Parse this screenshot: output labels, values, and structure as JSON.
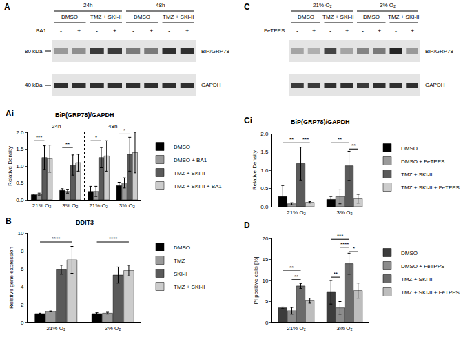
{
  "chart_data": [
    {
      "panel": "Ai",
      "type": "bar",
      "title": "BiP(GRP78)/GAPDH",
      "y_label": "Relative Density",
      "headers": [
        "24h",
        "48h"
      ],
      "categories": [
        "21% O₂",
        "3% O₂",
        "21% O₂",
        "3% O₂"
      ],
      "series": [
        {
          "name": "DMSO",
          "color": "#000000",
          "values": [
            0.15,
            0.28,
            0.25,
            0.42
          ],
          "errors": [
            0.02,
            0.05,
            0.15,
            0.1
          ]
        },
        {
          "name": "DMSO + BA1",
          "color": "#9a9a9a",
          "values": [
            0.17,
            0.25,
            0.25,
            0.5
          ],
          "errors": [
            0.03,
            0.05,
            0.15,
            0.15
          ]
        },
        {
          "name": "TMZ + SKI-II",
          "color": "#5a5a5a",
          "values": [
            1.25,
            1.03,
            1.25,
            1.35
          ],
          "errors": [
            0.35,
            0.3,
            0.3,
            0.5
          ]
        },
        {
          "name": "TMZ + SKI-II + BA1",
          "color": "#cccccc",
          "values": [
            1.22,
            1.1,
            1.3,
            1.4
          ],
          "errors": [
            0.4,
            0.25,
            0.45,
            0.6
          ]
        }
      ],
      "ylim": [
        0,
        2
      ],
      "yticks": [
        {
          "value": 0,
          "label": "0.0"
        },
        0.5,
        {
          "value": 1,
          "label": "1.0"
        },
        1.5,
        {
          "value": 2,
          "label": "2.0"
        }
      ],
      "grid": false,
      "legend": "right",
      "annotations": [
        {
          "text": "***",
          "group": 0,
          "from": 0,
          "to": 2,
          "y": 1.75
        },
        {
          "text": "**",
          "group": 1,
          "from": 0,
          "to": 2,
          "y": 1.55
        },
        {
          "text": "*",
          "group": 2,
          "from": 0,
          "to": 2,
          "y": 1.75
        },
        {
          "text": "*",
          "group": 3,
          "from": 0,
          "to": 2,
          "y": 1.95
        }
      ]
    },
    {
      "panel": "B",
      "type": "bar",
      "title": "DDIT3",
      "y_label": "Relative gene expression",
      "categories": [
        "21% O₂",
        "3% O₂"
      ],
      "series": [
        {
          "name": "DMSO",
          "color": "#000000",
          "values": [
            1.0,
            1.0
          ],
          "errors": [
            0.05,
            0.1
          ]
        },
        {
          "name": "TMZ",
          "color": "#9a9a9a",
          "values": [
            1.25,
            1.05
          ],
          "errors": [
            0.05,
            0.1
          ]
        },
        {
          "name": "SKI-II",
          "color": "#5a5a5a",
          "values": [
            5.9,
            5.3
          ],
          "errors": [
            0.5,
            0.9
          ]
        },
        {
          "name": "TMZ + SKI-II",
          "color": "#cccccc",
          "values": [
            7.0,
            5.8
          ],
          "errors": [
            1.5,
            0.6
          ]
        }
      ],
      "ylim": [
        0,
        10
      ],
      "yticks": [
        0,
        2,
        4,
        6,
        8,
        10
      ],
      "grid": false,
      "legend": "right",
      "annotations": [
        {
          "text": "****",
          "group": 0,
          "from": 0,
          "to": 3,
          "y": 9.0
        },
        {
          "text": "****",
          "group": 1,
          "from": 0,
          "to": 3,
          "y": 9.0
        }
      ]
    },
    {
      "panel": "Ci",
      "type": "bar",
      "title": "BiP(GRP78)/GAPDH",
      "y_label": "Relative Density",
      "categories": [
        "21% O₂",
        "3% O₂"
      ],
      "series": [
        {
          "name": "DMSO",
          "color": "#000000",
          "values": [
            0.28,
            0.2
          ],
          "errors": [
            0.3,
            0.08
          ]
        },
        {
          "name": "DMSO + FeTPPS",
          "color": "#9a9a9a",
          "values": [
            0.08,
            0.28
          ],
          "errors": [
            0.03,
            0.2
          ]
        },
        {
          "name": "TMZ + SKI-II",
          "color": "#5a5a5a",
          "values": [
            1.18,
            1.12
          ],
          "errors": [
            0.45,
            0.4
          ]
        },
        {
          "name": "TMZ + SKI-II + FeTPPS",
          "color": "#cccccc",
          "values": [
            0.12,
            0.22
          ],
          "errors": [
            0.02,
            0.12
          ]
        }
      ],
      "ylim": [
        0,
        2
      ],
      "yticks": [
        {
          "value": 0,
          "label": "0.0"
        },
        0.5,
        {
          "value": 1,
          "label": "1.0"
        },
        1.5,
        {
          "value": 2,
          "label": "2.0"
        }
      ],
      "grid": false,
      "legend": "right",
      "annotations": [
        {
          "text": "**",
          "group": 0,
          "from": 0,
          "to": 2,
          "y": 1.75
        },
        {
          "text": "***",
          "group": 0,
          "from": 2,
          "to": 3,
          "y": 1.75
        },
        {
          "text": "**",
          "group": 1,
          "from": 0,
          "to": 2,
          "y": 1.75
        },
        {
          "text": "**",
          "group": 1,
          "from": 2,
          "to": 3,
          "y": 1.58
        }
      ]
    },
    {
      "panel": "D",
      "type": "bar",
      "y_label": "PI positive cells [%]",
      "categories": [
        "21% O₂",
        "3% O₂"
      ],
      "series": [
        {
          "name": "DMSO",
          "color": "#3c3c3c",
          "values": [
            3.5,
            7.2
          ],
          "errors": [
            0.2,
            2.8
          ]
        },
        {
          "name": "DMSO + FeTPPS",
          "color": "#8c8c8c",
          "values": [
            2.8,
            3.5
          ],
          "errors": [
            0.8,
            1.5
          ]
        },
        {
          "name": "TMZ + SKI-II",
          "color": "#6b6b6b",
          "values": [
            8.7,
            14.0
          ],
          "errors": [
            0.6,
            2.5
          ]
        },
        {
          "name": "TMZ + SKI-II + FeTPPS",
          "color": "#bdbdbd",
          "values": [
            5.2,
            7.6
          ],
          "errors": [
            0.6,
            1.8
          ]
        }
      ],
      "ylim": [
        0,
        20
      ],
      "yticks": [
        0,
        5,
        10,
        15,
        20
      ],
      "grid": false,
      "legend": "right",
      "annotations": [
        {
          "text": "**",
          "group": 0,
          "from": 0,
          "to": 2,
          "y": 12.3
        },
        {
          "text": "**",
          "group": 0,
          "from": 1,
          "to": 2,
          "y": 10.2
        },
        {
          "text": "***",
          "group": 1,
          "from": 0,
          "to": 2,
          "y": 19.8
        },
        {
          "text": "****",
          "group": 1,
          "from": 1,
          "to": 2,
          "y": 17.9
        },
        {
          "text": "*",
          "group": 1,
          "from": 2,
          "to": 3,
          "y": 16.9
        },
        {
          "text": "**",
          "group": 1,
          "from": 0,
          "to": 1,
          "y": 10.8
        }
      ]
    }
  ],
  "blots": [
    {
      "panel": "A",
      "headers": [
        "24h",
        "48h"
      ],
      "treatments": [
        "DMSO",
        "TMZ + SKI-II",
        "DMSO",
        "TMZ + SKI-II"
      ],
      "row_label": "BA1",
      "lane_signs": [
        "-",
        "+",
        "-",
        "+",
        "-",
        "+",
        "-",
        "+"
      ],
      "rows": [
        {
          "label": "BiP/GRP78",
          "ladder": "80 kDa",
          "band_intensity": [
            0.35,
            0.4,
            0.8,
            0.8,
            0.5,
            0.5,
            0.85,
            0.85
          ]
        },
        {
          "label": "GAPDH",
          "ladder": "40 kDa",
          "band_intensity": [
            0.85,
            0.85,
            0.85,
            0.85,
            0.85,
            0.85,
            0.85,
            0.85
          ]
        }
      ]
    },
    {
      "panel": "C",
      "headers": [
        "21% O₂",
        "3% O₂"
      ],
      "treatments": [
        "DMSO",
        "TMZ + SKI-II",
        "DMSO",
        "TMZ + SKI-II"
      ],
      "row_label": "FeTPPS",
      "lane_signs": [
        "-",
        "+",
        "-",
        "+",
        "-",
        "+",
        "-",
        "+"
      ],
      "rows": [
        {
          "label": "BiP/GRP78",
          "band_intensity": [
            0.3,
            0.25,
            0.75,
            0.3,
            0.45,
            0.5,
            0.9,
            0.35
          ]
        },
        {
          "label": "GAPDH",
          "band_intensity": [
            0.8,
            0.8,
            0.85,
            0.85,
            0.8,
            0.85,
            0.85,
            0.85
          ]
        }
      ]
    }
  ]
}
